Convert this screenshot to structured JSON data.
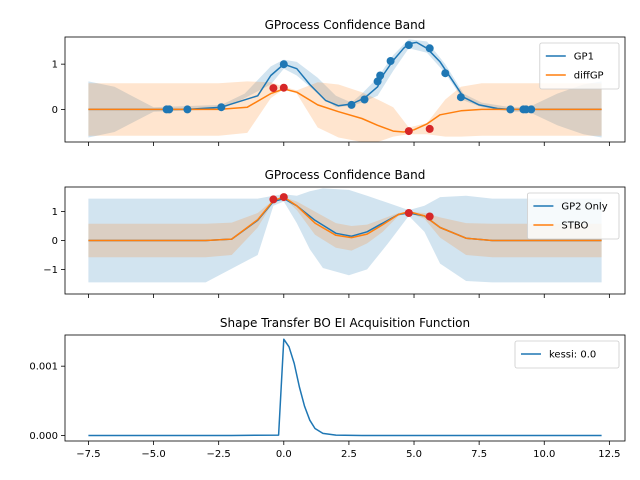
{
  "colors": {
    "blue": "#1f77b4",
    "orange": "#ff7f0e",
    "red": "#d62728"
  },
  "chart_data": [
    {
      "type": "line",
      "title": "GProcess Confidence Band",
      "xlim": [
        -8.4,
        13.1
      ],
      "ylim": [
        -0.72,
        1.6
      ],
      "yticks": [
        {
          "v": 0,
          "label": "0"
        },
        {
          "v": 1,
          "label": "1"
        }
      ],
      "legend_position": "top-right",
      "series": [
        {
          "name": "GP1",
          "color": "#1f77b4",
          "x": [
            -7.5,
            -5,
            -4.5,
            -3.7,
            -2.4,
            -1,
            -0.5,
            0,
            0.5,
            1,
            1.6,
            2.1,
            2.6,
            3.1,
            3.6,
            3.8,
            4.2,
            4.6,
            4.8,
            5.1,
            5.5,
            6.0,
            6.5,
            6.9,
            7.5,
            8.2,
            8.7,
            9.2,
            9.4,
            10,
            12.2
          ],
          "y": [
            0,
            0,
            0,
            0,
            0.05,
            0.3,
            0.75,
            1.0,
            0.9,
            0.55,
            0.2,
            0.08,
            0.12,
            0.25,
            0.5,
            0.75,
            1.08,
            1.35,
            1.45,
            1.48,
            1.35,
            1.05,
            0.62,
            0.27,
            0.1,
            0.02,
            0,
            0,
            0,
            0,
            0
          ]
        },
        {
          "name": "diffGP",
          "color": "#ff7f0e",
          "x": [
            -7.5,
            -2.5,
            -1.4,
            -0.5,
            0,
            0.5,
            1.3,
            2.1,
            3.0,
            3.6,
            4.2,
            4.6,
            5.0,
            5.5,
            6.0,
            6.8,
            7.6,
            8.6,
            12.2
          ],
          "y": [
            0,
            0,
            0.05,
            0.35,
            0.45,
            0.38,
            0.1,
            -0.05,
            -0.2,
            -0.35,
            -0.48,
            -0.5,
            -0.45,
            -0.32,
            -0.12,
            -0.03,
            0,
            0,
            0
          ]
        }
      ],
      "bands": [
        {
          "color": "#1f77b4",
          "x": [
            -7.5,
            -6.5,
            -5.0,
            -2.4,
            -1.5,
            -0.5,
            0,
            0.5,
            1.3,
            2.0,
            2.6,
            3.0,
            3.6,
            4.2,
            4.8,
            5.5,
            6.2,
            6.9,
            7.6,
            8.7,
            9.4,
            10.5,
            11.5,
            12.2
          ],
          "upper": [
            0.62,
            0.5,
            0.05,
            0.1,
            0.35,
            0.95,
            1.1,
            1.05,
            0.7,
            0.3,
            0.15,
            0.35,
            0.7,
            1.2,
            1.55,
            1.5,
            1.0,
            0.35,
            0.15,
            0.05,
            0.05,
            0.35,
            0.55,
            0.62
          ],
          "lower": [
            -0.62,
            -0.5,
            -0.05,
            0,
            0.25,
            0.55,
            0.9,
            0.75,
            0.35,
            0.05,
            0.08,
            0.15,
            0.3,
            0.85,
            1.35,
            1.25,
            0.8,
            0.2,
            0.05,
            -0.05,
            -0.05,
            -0.35,
            -0.55,
            -0.62
          ]
        },
        {
          "color": "#ff7f0e",
          "x": [
            -7.5,
            -2.5,
            -1.4,
            -0.5,
            0,
            0.5,
            1.3,
            2.1,
            3.0,
            3.6,
            4.2,
            4.8,
            5.5,
            6.2,
            6.8,
            7.6,
            8.6,
            12.2
          ],
          "upper": [
            0.58,
            0.58,
            0.62,
            0.6,
            0.5,
            0.42,
            0.6,
            0.55,
            0.38,
            0.22,
            0.05,
            -0.4,
            -0.3,
            0.22,
            0.5,
            0.58,
            0.58,
            0.58
          ],
          "lower": [
            -0.58,
            -0.58,
            -0.52,
            0.25,
            0.45,
            0.35,
            -0.4,
            -0.62,
            -0.72,
            -0.72,
            -0.6,
            -0.55,
            -0.55,
            -0.6,
            -0.6,
            -0.58,
            -0.58,
            -0.58
          ]
        }
      ],
      "points": [
        {
          "color": "#1f77b4",
          "x": [
            -4.5,
            -4.4,
            -3.7,
            -2.4,
            0.0,
            2.6,
            3.1,
            3.6,
            3.7,
            4.1,
            4.8,
            5.6,
            6.2,
            6.8,
            8.7,
            9.2,
            9.3,
            9.5
          ],
          "y": [
            0,
            0,
            0,
            0.05,
            1.0,
            0.1,
            0.22,
            0.62,
            0.75,
            1.07,
            1.42,
            1.35,
            0.8,
            0.27,
            0,
            0,
            0,
            0
          ]
        },
        {
          "color": "#d62728",
          "x": [
            -0.4,
            0.0,
            4.8,
            5.6
          ],
          "y": [
            0.47,
            0.48,
            -0.48,
            -0.43
          ]
        }
      ]
    },
    {
      "type": "line",
      "title": "GProcess Confidence Band",
      "xlim": [
        -8.4,
        13.1
      ],
      "ylim": [
        -1.85,
        1.85
      ],
      "yticks": [
        {
          "v": -1,
          "label": "−1"
        },
        {
          "v": 0,
          "label": "0"
        },
        {
          "v": 1,
          "label": "1"
        }
      ],
      "legend_position": "top-right",
      "series": [
        {
          "name": "GP2 Only",
          "color": "#1f77b4",
          "x": [
            -7.5,
            -3.0,
            -2.0,
            -1.0,
            -0.4,
            0,
            0.5,
            1.2,
            2.0,
            2.6,
            3.2,
            3.8,
            4.4,
            4.8,
            5.4,
            6.0,
            7.0,
            8.0,
            12.2
          ],
          "y": [
            0,
            0,
            0.05,
            0.7,
            1.35,
            1.45,
            1.2,
            0.7,
            0.25,
            0.15,
            0.3,
            0.6,
            0.9,
            0.95,
            0.85,
            0.45,
            0.08,
            0,
            0
          ]
        },
        {
          "name": "STBO",
          "color": "#ff7f0e",
          "x": [
            -7.5,
            -3.0,
            -2.0,
            -1.0,
            -0.4,
            0,
            0.5,
            1.2,
            2.0,
            2.6,
            3.2,
            3.8,
            4.4,
            4.8,
            5.4,
            6.0,
            7.0,
            8.0,
            12.2
          ],
          "y": [
            0,
            0,
            0.05,
            0.72,
            1.38,
            1.5,
            1.2,
            0.6,
            0.18,
            0.1,
            0.22,
            0.55,
            0.9,
            1.0,
            0.85,
            0.45,
            0.08,
            0,
            0
          ]
        }
      ],
      "bands": [
        {
          "color": "#1f77b4",
          "x": [
            -7.5,
            -3.0,
            -1.0,
            -0.4,
            0,
            0.5,
            1.0,
            1.5,
            2.5,
            3.2,
            4.0,
            4.8,
            5.4,
            6.0,
            7.0,
            8.0,
            12.2
          ],
          "upper": [
            1.45,
            1.45,
            1.45,
            1.55,
            1.6,
            1.55,
            1.7,
            1.8,
            1.75,
            1.55,
            1.3,
            1.05,
            1.2,
            1.5,
            1.55,
            1.45,
            1.45
          ],
          "lower": [
            -1.45,
            -1.45,
            -0.5,
            1.2,
            1.35,
            0.6,
            -0.3,
            -0.95,
            -1.2,
            -1.0,
            -0.1,
            0.85,
            0.3,
            -0.8,
            -1.4,
            -1.45,
            -1.45
          ]
        },
        {
          "color": "#ff7f0e",
          "x": [
            -7.5,
            -3.0,
            -2.0,
            -1.0,
            -0.4,
            0,
            0.5,
            1.2,
            2.0,
            2.6,
            3.2,
            3.8,
            4.4,
            4.8,
            5.4,
            6.0,
            7.0,
            8.0,
            12.2
          ],
          "upper": [
            0.58,
            0.58,
            0.62,
            0.95,
            1.4,
            1.5,
            1.35,
            1.0,
            0.6,
            0.5,
            0.55,
            0.75,
            0.95,
            1.0,
            0.95,
            0.8,
            0.6,
            0.58,
            0.58
          ],
          "lower": [
            -0.58,
            -0.58,
            -0.5,
            0.45,
            1.35,
            1.48,
            1.05,
            0.2,
            -0.25,
            -0.35,
            -0.1,
            0.3,
            0.85,
            0.95,
            0.75,
            0.1,
            -0.5,
            -0.58,
            -0.58
          ]
        }
      ],
      "points": [
        {
          "color": "#d62728",
          "x": [
            -0.4,
            0.0,
            4.8,
            5.6
          ],
          "y": [
            1.42,
            1.5,
            0.95,
            0.83
          ]
        }
      ]
    },
    {
      "type": "line",
      "title": "Shape Transfer BO EI Acquisition Function",
      "xlim": [
        -8.4,
        13.1
      ],
      "ylim": [
        -8e-05,
        0.00145
      ],
      "yticks": [
        {
          "v": 0,
          "label": "0.000"
        },
        {
          "v": 0.001,
          "label": "0.001"
        }
      ],
      "xticks": [
        {
          "v": -7.5,
          "label": "−7.5"
        },
        {
          "v": -5,
          "label": "−5.0"
        },
        {
          "v": -2.5,
          "label": "−2.5"
        },
        {
          "v": 0,
          "label": "0.0"
        },
        {
          "v": 2.5,
          "label": "2.5"
        },
        {
          "v": 5,
          "label": "5.0"
        },
        {
          "v": 7.5,
          "label": "7.5"
        },
        {
          "v": 10,
          "label": "10.0"
        },
        {
          "v": 12.5,
          "label": "12.5"
        }
      ],
      "legend_position": "top-right",
      "series": [
        {
          "name": "kessi: 0.0",
          "color": "#1f77b4",
          "x": [
            -7.5,
            -2.0,
            -0.2,
            -0.1,
            0.0,
            0.2,
            0.4,
            0.6,
            0.8,
            1.0,
            1.2,
            1.5,
            2.0,
            3.0,
            5.0,
            12.2
          ],
          "y": [
            0,
            0,
            5e-06,
            0.0007,
            0.00139,
            0.00128,
            0.00104,
            0.0007,
            0.00042,
            0.00022,
            0.0001,
            3e-05,
            5e-06,
            0,
            0,
            0
          ]
        }
      ]
    }
  ]
}
